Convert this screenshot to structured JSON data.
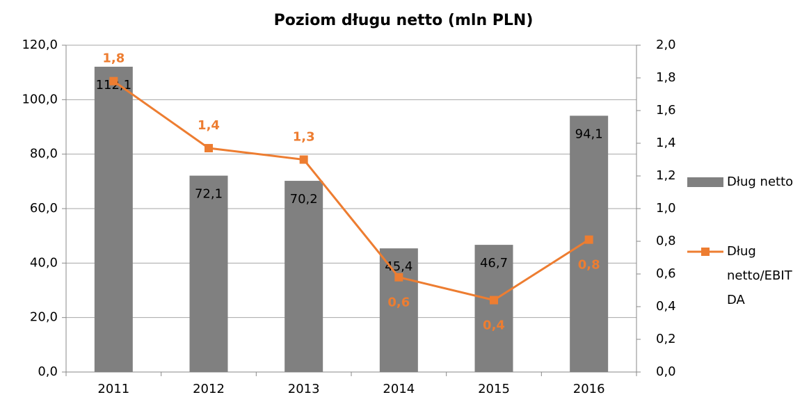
{
  "chart_data": {
    "type": "bar+line",
    "title": "Poziom długu netto (mln PLN)",
    "categories": [
      "2011",
      "2012",
      "2013",
      "2014",
      "2015",
      "2016"
    ],
    "series": [
      {
        "name": "Dług netto",
        "type": "bar",
        "color": "#808080",
        "values": [
          112.1,
          72.1,
          70.2,
          45.4,
          46.7,
          94.1
        ],
        "value_labels": [
          "112,1",
          "72,1",
          "70,2",
          "45,4",
          "46,7",
          "94,1"
        ]
      },
      {
        "name": "Dług netto/EBITDA",
        "type": "line",
        "axis": "y2",
        "color": "#ed7d31",
        "values": [
          1.78,
          1.37,
          1.3,
          0.58,
          0.44,
          0.81
        ],
        "value_labels": [
          "1,8",
          "1,4",
          "1,3",
          "0,6",
          "0,4",
          "0,8"
        ]
      }
    ],
    "ylim": [
      0,
      120
    ],
    "yticks": [
      {
        "value": 0,
        "label": "0,0"
      },
      {
        "value": 20,
        "label": "20,0"
      },
      {
        "value": 40,
        "label": "40,0"
      },
      {
        "value": 60,
        "label": "60,0"
      },
      {
        "value": 80,
        "label": "80,0"
      },
      {
        "value": 100,
        "label": "100,0"
      },
      {
        "value": 120,
        "label": "120,0"
      }
    ],
    "y2lim": [
      0,
      2
    ],
    "y2ticks": [
      {
        "value": 0,
        "label": "0,0"
      },
      {
        "value": 0.2,
        "label": "0,2"
      },
      {
        "value": 0.4,
        "label": "0,4"
      },
      {
        "value": 0.6,
        "label": "0,6"
      },
      {
        "value": 0.8,
        "label": "0,8"
      },
      {
        "value": 1,
        "label": "1,0"
      },
      {
        "value": 1.2,
        "label": "1,2"
      },
      {
        "value": 1.4,
        "label": "1,4"
      },
      {
        "value": 1.6,
        "label": "1,6"
      },
      {
        "value": 1.8,
        "label": "1,8"
      },
      {
        "value": 2,
        "label": "2,0"
      }
    ],
    "grid": true,
    "legend": "right"
  }
}
